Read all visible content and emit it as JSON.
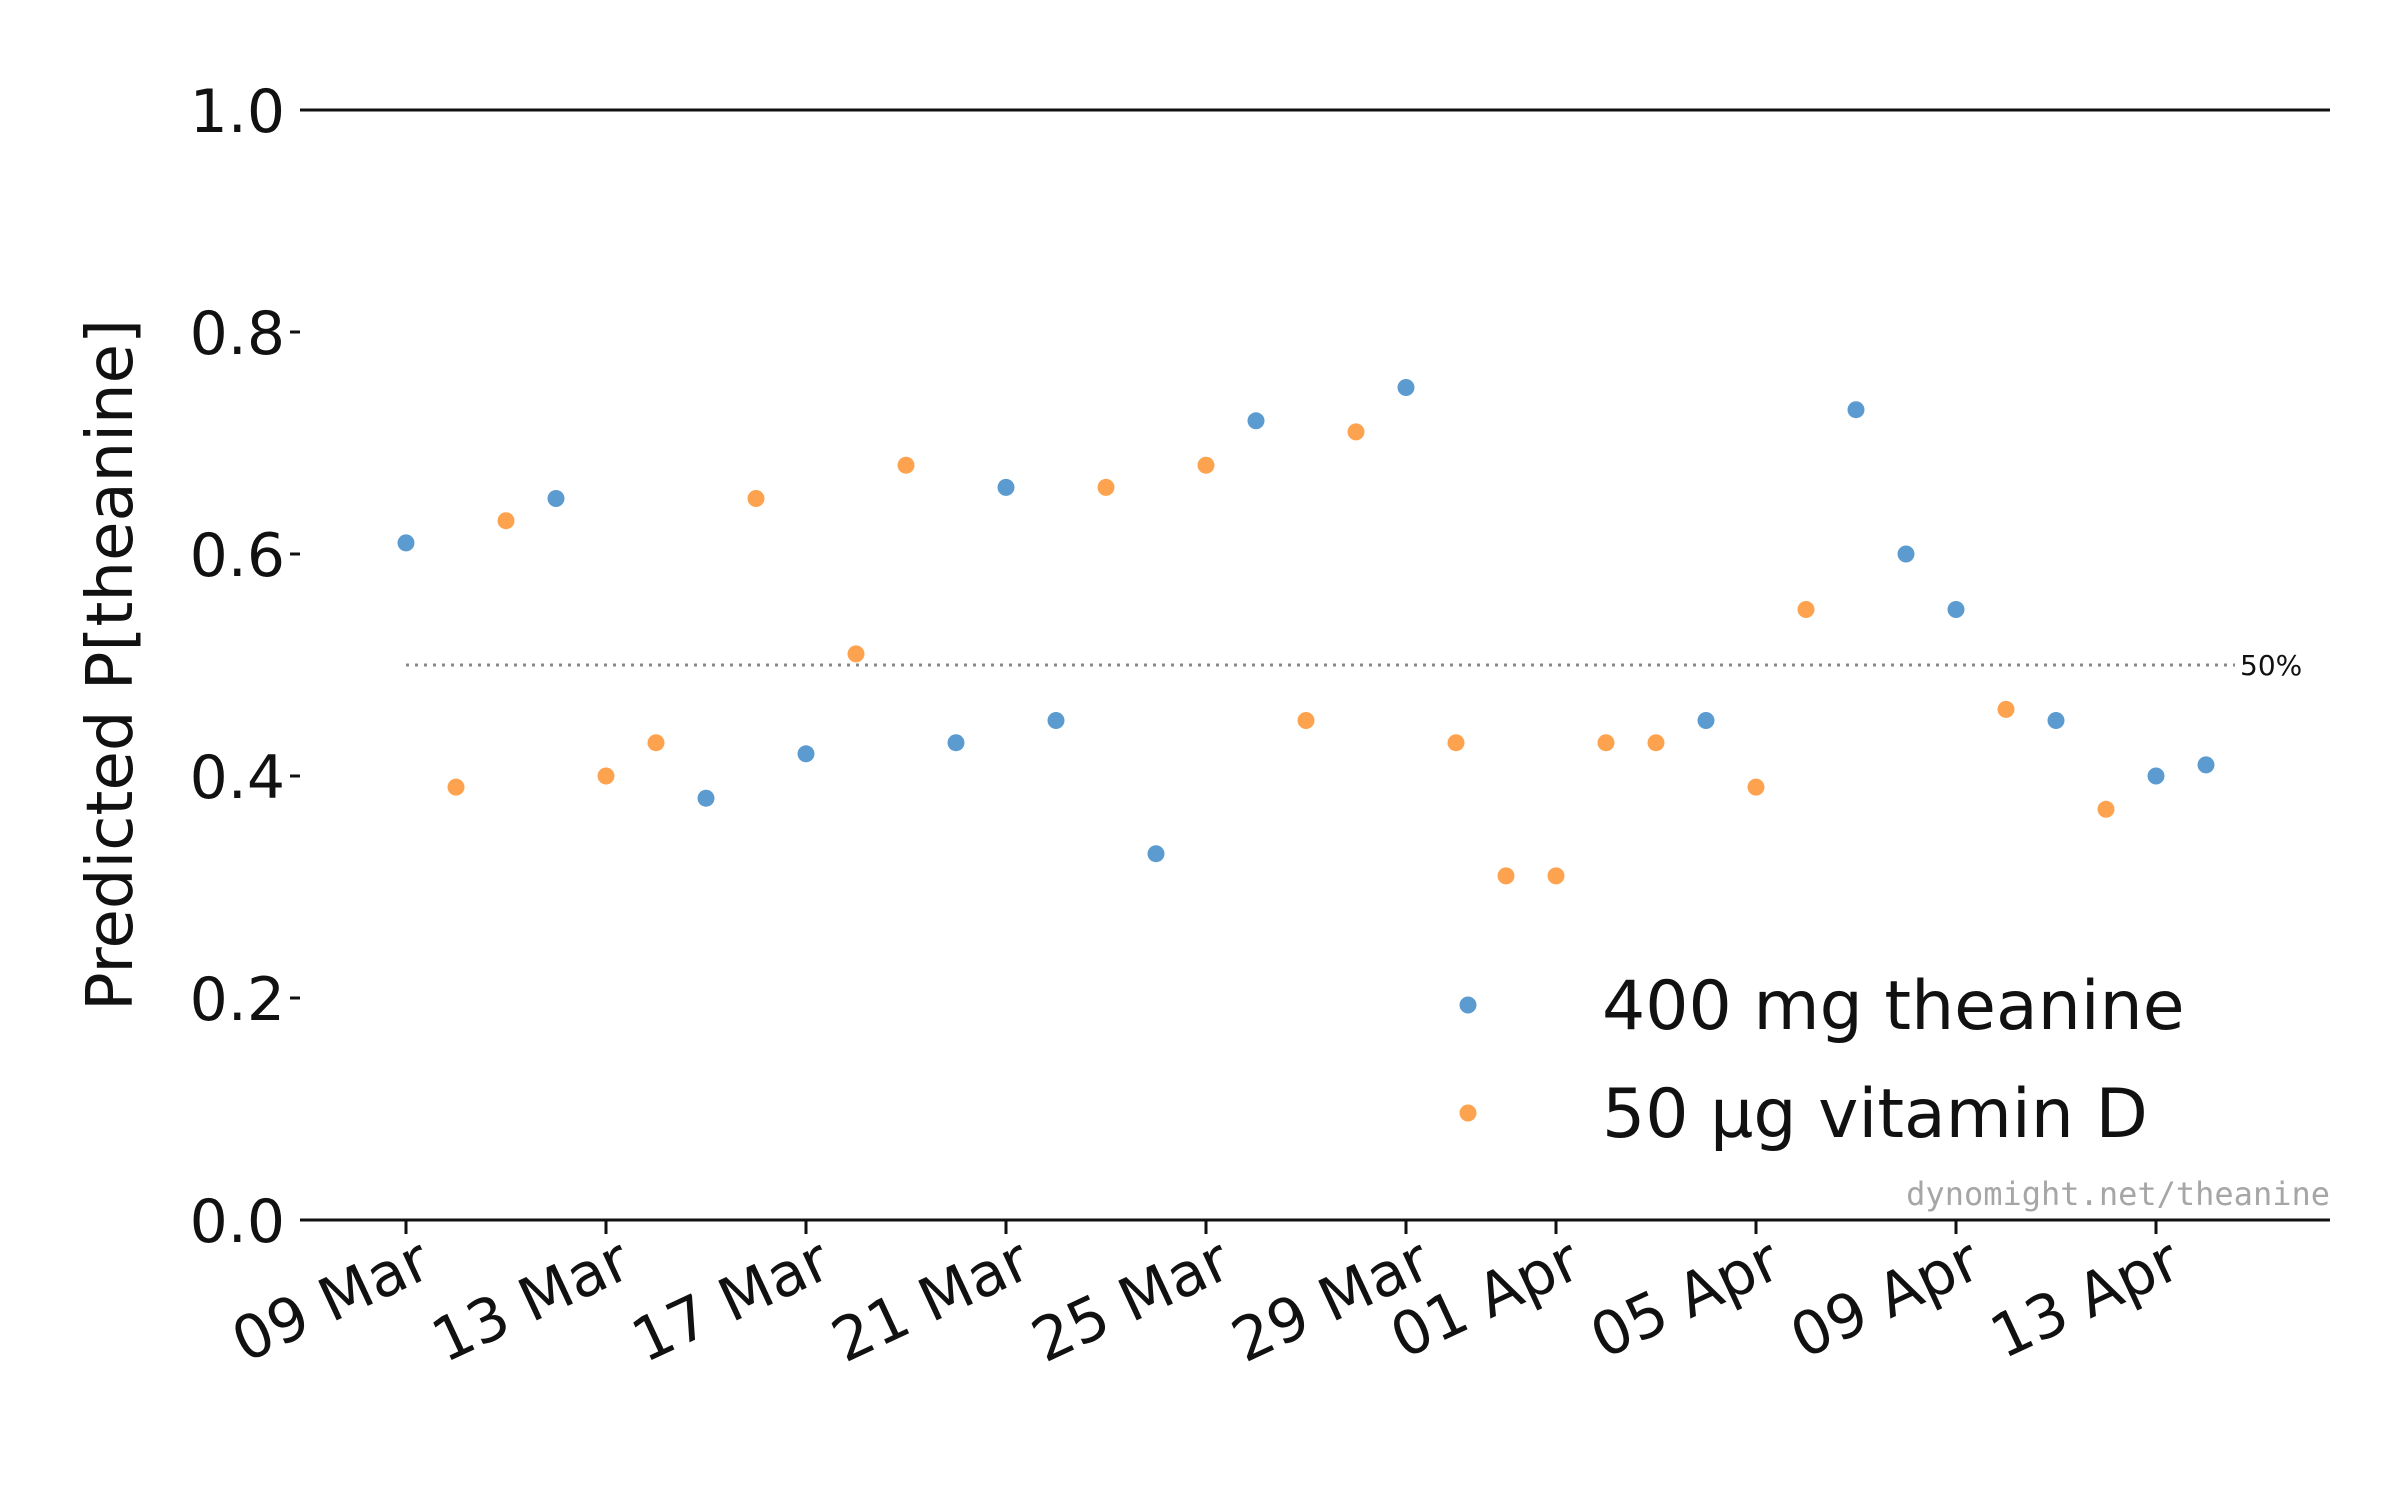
{
  "chart_data": {
    "type": "scatter",
    "ylabel": "Predicted P[theanine]",
    "ylim": [
      0,
      1
    ],
    "yticks": [
      0.0,
      0.2,
      0.4,
      0.6,
      0.8,
      1.0
    ],
    "ytick_labels": [
      "0.0",
      "0.2",
      "0.4",
      "0.6",
      "0.8",
      "1.0"
    ],
    "xlim": [
      "2022-03-08",
      "2022-04-17"
    ],
    "xticks": [
      "2022-03-09",
      "2022-03-13",
      "2022-03-17",
      "2022-03-21",
      "2022-03-25",
      "2022-03-29",
      "2022-04-01",
      "2022-04-05",
      "2022-04-09",
      "2022-04-13"
    ],
    "xtick_labels": [
      "09 Mar",
      "13 Mar",
      "17 Mar",
      "21 Mar",
      "25 Mar",
      "29 Mar",
      "01 Apr",
      "05 Apr",
      "09 Apr",
      "13 Apr"
    ],
    "reference_line": {
      "y": 0.5,
      "label": "50%",
      "style": "dotted"
    },
    "legend_position": "bottom-right",
    "grid": false,
    "series": [
      {
        "name": "400 mg theanine",
        "color": "#5b9bd0",
        "points": [
          {
            "x": "2022-03-09",
            "y": 0.61
          },
          {
            "x": "2022-03-12",
            "y": 0.65
          },
          {
            "x": "2022-03-15",
            "y": 0.38
          },
          {
            "x": "2022-03-17",
            "y": 0.42
          },
          {
            "x": "2022-03-20",
            "y": 0.43
          },
          {
            "x": "2022-03-21",
            "y": 0.66
          },
          {
            "x": "2022-03-22",
            "y": 0.45
          },
          {
            "x": "2022-03-24",
            "y": 0.33
          },
          {
            "x": "2022-03-26",
            "y": 0.72
          },
          {
            "x": "2022-03-29",
            "y": 0.75
          },
          {
            "x": "2022-04-04",
            "y": 0.45
          },
          {
            "x": "2022-04-07",
            "y": 0.73
          },
          {
            "x": "2022-04-08",
            "y": 0.6
          },
          {
            "x": "2022-04-09",
            "y": 0.55
          },
          {
            "x": "2022-04-11",
            "y": 0.45
          },
          {
            "x": "2022-04-13",
            "y": 0.4
          },
          {
            "x": "2022-04-14",
            "y": 0.41
          }
        ]
      },
      {
        "name": "50 µg vitamin D",
        "color": "#fda350",
        "points": [
          {
            "x": "2022-03-10",
            "y": 0.39
          },
          {
            "x": "2022-03-11",
            "y": 0.63
          },
          {
            "x": "2022-03-13",
            "y": 0.4
          },
          {
            "x": "2022-03-14",
            "y": 0.43
          },
          {
            "x": "2022-03-16",
            "y": 0.65
          },
          {
            "x": "2022-03-18",
            "y": 0.51
          },
          {
            "x": "2022-03-19",
            "y": 0.68
          },
          {
            "x": "2022-03-23",
            "y": 0.66
          },
          {
            "x": "2022-03-25",
            "y": 0.68
          },
          {
            "x": "2022-03-27",
            "y": 0.45
          },
          {
            "x": "2022-03-28",
            "y": 0.71
          },
          {
            "x": "2022-03-30",
            "y": 0.43
          },
          {
            "x": "2022-03-31",
            "y": 0.31
          },
          {
            "x": "2022-04-01",
            "y": 0.31
          },
          {
            "x": "2022-04-02",
            "y": 0.43
          },
          {
            "x": "2022-04-03",
            "y": 0.43
          },
          {
            "x": "2022-04-05",
            "y": 0.39
          },
          {
            "x": "2022-04-06",
            "y": 0.55
          },
          {
            "x": "2022-04-10",
            "y": 0.46
          },
          {
            "x": "2022-04-12",
            "y": 0.37
          }
        ]
      }
    ]
  },
  "credit": "dynomight.net/theanine"
}
